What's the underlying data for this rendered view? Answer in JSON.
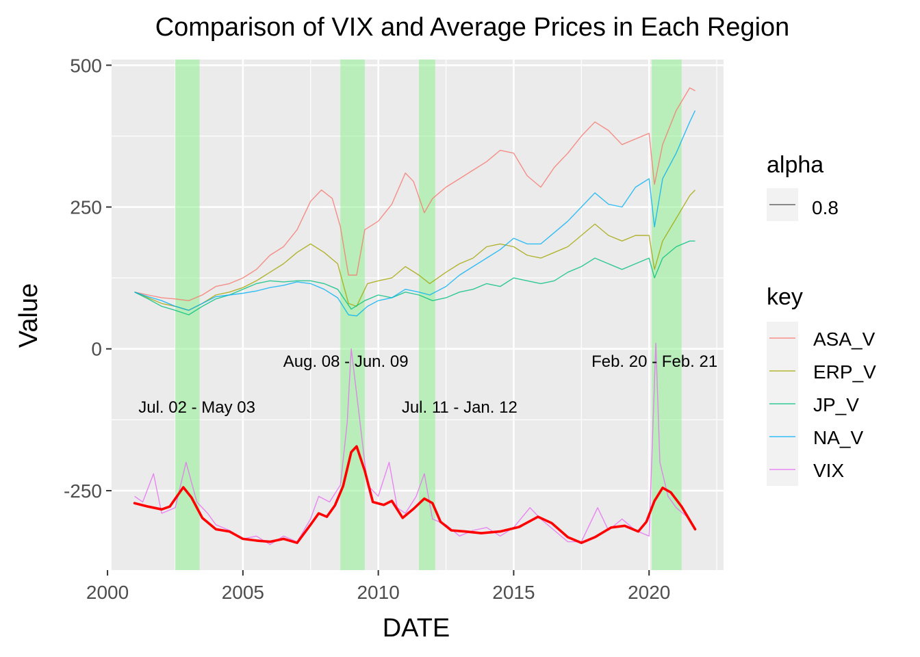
{
  "chart_data": {
    "type": "line",
    "title": "Comparison of VIX and Average Prices in Each Region",
    "xlabel": "DATE",
    "ylabel": "Value",
    "xlim": [
      2000.15,
      2022.75
    ],
    "ylim": [
      -390,
      510
    ],
    "x_ticks": [
      2000,
      2005,
      2010,
      2015,
      2020
    ],
    "x_tick_labels": [
      "2000",
      "2005",
      "2010",
      "2015",
      "2020"
    ],
    "y_ticks": [
      500,
      250,
      0,
      -250
    ],
    "y_tick_labels": [
      "500",
      "250",
      "0",
      "-250"
    ],
    "grid": true,
    "legend_position": "right",
    "legend_alpha": {
      "title": "alpha",
      "label": "0.8"
    },
    "legend_key": {
      "title": "key"
    },
    "shaded_periods": [
      {
        "x0": 2002.5,
        "x1": 2003.4,
        "label": "Jul. 02 - May 03",
        "label_x": 2003.3,
        "label_y": -103
      },
      {
        "x0": 2008.6,
        "x1": 2009.5,
        "label": "Aug. 08 - Jun. 09",
        "label_x": 2008.8,
        "label_y": -22
      },
      {
        "x0": 2011.5,
        "x1": 2012.1,
        "label": "Jul. 11 - Jan. 12",
        "label_x": 2013.0,
        "label_y": -103
      },
      {
        "x0": 2020.1,
        "x1": 2021.2,
        "label": "Feb. 20 - Feb. 21",
        "label_x": 2020.2,
        "label_y": -22
      }
    ],
    "series": [
      {
        "name": "ASA_V",
        "color": "#F8766D",
        "x": [
          2001.0,
          2001.5,
          2002.0,
          2002.5,
          2003.0,
          2003.5,
          2004.0,
          2004.5,
          2005.0,
          2005.5,
          2006.0,
          2006.5,
          2007.0,
          2007.5,
          2007.9,
          2008.3,
          2008.6,
          2008.9,
          2009.2,
          2009.5,
          2010.0,
          2010.5,
          2011.0,
          2011.3,
          2011.7,
          2012.0,
          2012.5,
          2013.0,
          2013.5,
          2014.0,
          2014.5,
          2015.0,
          2015.5,
          2016.0,
          2016.5,
          2017.0,
          2017.5,
          2018.0,
          2018.5,
          2019.0,
          2019.5,
          2020.0,
          2020.2,
          2020.5,
          2021.0,
          2021.5,
          2021.7
        ],
        "values": [
          100,
          95,
          90,
          88,
          85,
          95,
          110,
          115,
          125,
          140,
          165,
          180,
          210,
          260,
          280,
          265,
          215,
          130,
          130,
          210,
          225,
          255,
          310,
          295,
          240,
          265,
          285,
          300,
          315,
          330,
          350,
          345,
          305,
          285,
          320,
          345,
          375,
          400,
          385,
          360,
          370,
          380,
          290,
          360,
          420,
          460,
          455
        ]
      },
      {
        "name": "ERP_V",
        "color": "#A3A500",
        "x": [
          2001.0,
          2001.5,
          2002.0,
          2002.5,
          2003.0,
          2003.5,
          2004.0,
          2004.5,
          2005.0,
          2005.5,
          2006.0,
          2006.5,
          2007.0,
          2007.5,
          2008.0,
          2008.5,
          2008.9,
          2009.2,
          2009.6,
          2010.0,
          2010.5,
          2011.0,
          2011.5,
          2011.9,
          2012.5,
          2013.0,
          2013.5,
          2014.0,
          2014.5,
          2015.0,
          2015.5,
          2016.0,
          2016.5,
          2017.0,
          2017.5,
          2018.0,
          2018.5,
          2019.0,
          2019.5,
          2020.0,
          2020.2,
          2020.5,
          2021.0,
          2021.5,
          2021.7
        ],
        "values": [
          100,
          90,
          80,
          75,
          68,
          80,
          95,
          100,
          108,
          120,
          135,
          150,
          170,
          185,
          170,
          150,
          80,
          75,
          115,
          120,
          125,
          145,
          130,
          115,
          135,
          150,
          160,
          180,
          185,
          180,
          165,
          160,
          170,
          180,
          200,
          220,
          200,
          190,
          200,
          200,
          140,
          190,
          230,
          270,
          280
        ]
      },
      {
        "name": "JP_V",
        "color": "#00BF7D",
        "x": [
          2001.0,
          2001.5,
          2002.0,
          2002.5,
          2003.0,
          2003.5,
          2004.0,
          2004.5,
          2005.0,
          2005.5,
          2006.0,
          2006.5,
          2007.0,
          2007.5,
          2008.0,
          2008.5,
          2009.0,
          2009.5,
          2010.0,
          2010.5,
          2011.0,
          2011.5,
          2012.0,
          2012.5,
          2013.0,
          2013.5,
          2014.0,
          2014.5,
          2015.0,
          2015.5,
          2016.0,
          2016.5,
          2017.0,
          2017.5,
          2018.0,
          2018.5,
          2019.0,
          2019.5,
          2020.0,
          2020.2,
          2020.5,
          2021.0,
          2021.5,
          2021.7
        ],
        "values": [
          100,
          88,
          75,
          68,
          60,
          75,
          88,
          95,
          105,
          115,
          120,
          118,
          120,
          120,
          115,
          105,
          70,
          85,
          95,
          90,
          100,
          95,
          85,
          90,
          100,
          105,
          115,
          110,
          125,
          120,
          115,
          120,
          135,
          145,
          160,
          150,
          140,
          150,
          160,
          125,
          160,
          180,
          190,
          190
        ]
      },
      {
        "name": "NA_V",
        "color": "#00B0F6",
        "x": [
          2001.0,
          2001.5,
          2002.0,
          2002.5,
          2003.0,
          2003.5,
          2004.0,
          2004.5,
          2005.0,
          2005.5,
          2006.0,
          2006.5,
          2007.0,
          2007.5,
          2008.0,
          2008.5,
          2008.9,
          2009.2,
          2009.6,
          2010.0,
          2010.5,
          2011.0,
          2011.5,
          2011.9,
          2012.5,
          2013.0,
          2013.5,
          2014.0,
          2014.5,
          2015.0,
          2015.5,
          2016.0,
          2016.5,
          2017.0,
          2017.5,
          2018.0,
          2018.5,
          2019.0,
          2019.5,
          2020.0,
          2020.2,
          2020.5,
          2021.0,
          2021.5,
          2021.7
        ],
        "values": [
          100,
          92,
          85,
          75,
          68,
          80,
          92,
          95,
          98,
          102,
          108,
          112,
          118,
          115,
          105,
          90,
          60,
          58,
          75,
          85,
          90,
          105,
          100,
          95,
          110,
          130,
          145,
          160,
          175,
          195,
          185,
          185,
          205,
          225,
          250,
          275,
          255,
          250,
          285,
          300,
          215,
          300,
          345,
          400,
          420
        ]
      },
      {
        "name": "VIX",
        "color": "#E76BF3",
        "x": [
          2001.0,
          2001.3,
          2001.7,
          2002.0,
          2002.5,
          2002.9,
          2003.3,
          2003.7,
          2004.0,
          2004.5,
          2005.0,
          2005.5,
          2006.0,
          2006.5,
          2007.0,
          2007.5,
          2007.8,
          2008.2,
          2008.6,
          2008.85,
          2009.0,
          2009.3,
          2009.6,
          2010.0,
          2010.4,
          2010.7,
          2011.0,
          2011.4,
          2011.7,
          2012.0,
          2012.5,
          2013.0,
          2013.5,
          2014.0,
          2014.5,
          2015.0,
          2015.6,
          2016.0,
          2016.5,
          2017.0,
          2017.5,
          2018.1,
          2018.5,
          2019.0,
          2019.5,
          2020.0,
          2020.25,
          2020.4,
          2020.7,
          2021.0,
          2021.5,
          2021.7
        ],
        "values": [
          -260,
          -270,
          -220,
          -290,
          -280,
          -200,
          -270,
          -290,
          -310,
          -320,
          -335,
          -330,
          -345,
          -330,
          -340,
          -300,
          -260,
          -270,
          -240,
          -130,
          0,
          -120,
          -240,
          -260,
          -200,
          -280,
          -290,
          -260,
          -220,
          -300,
          -310,
          -330,
          -320,
          -315,
          -330,
          -315,
          -280,
          -300,
          -320,
          -340,
          -340,
          -280,
          -320,
          -300,
          -320,
          -330,
          10,
          -200,
          -260,
          -280,
          -300,
          -320
        ]
      }
    ],
    "vix_smooth": {
      "color": "#FF0000",
      "x": [
        2001.0,
        2001.5,
        2002.0,
        2002.3,
        2002.8,
        2003.1,
        2003.5,
        2004.0,
        2004.5,
        2005.0,
        2005.5,
        2006.0,
        2006.5,
        2007.0,
        2007.5,
        2007.8,
        2008.1,
        2008.4,
        2008.7,
        2009.0,
        2009.2,
        2009.5,
        2009.8,
        2010.2,
        2010.5,
        2010.9,
        2011.3,
        2011.7,
        2012.0,
        2012.3,
        2012.7,
        2013.2,
        2013.8,
        2014.5,
        2015.2,
        2015.9,
        2016.4,
        2017.0,
        2017.5,
        2018.0,
        2018.6,
        2019.1,
        2019.6,
        2019.9,
        2020.2,
        2020.5,
        2020.8,
        2021.2,
        2021.7
      ],
      "values": [
        -272,
        -278,
        -283,
        -278,
        -244,
        -262,
        -298,
        -318,
        -322,
        -335,
        -338,
        -340,
        -335,
        -342,
        -310,
        -290,
        -296,
        -276,
        -242,
        -182,
        -172,
        -215,
        -270,
        -275,
        -268,
        -298,
        -282,
        -264,
        -272,
        -305,
        -320,
        -322,
        -325,
        -322,
        -314,
        -296,
        -307,
        -332,
        -342,
        -332,
        -315,
        -312,
        -322,
        -305,
        -268,
        -245,
        -253,
        -278,
        -318
      ]
    }
  }
}
